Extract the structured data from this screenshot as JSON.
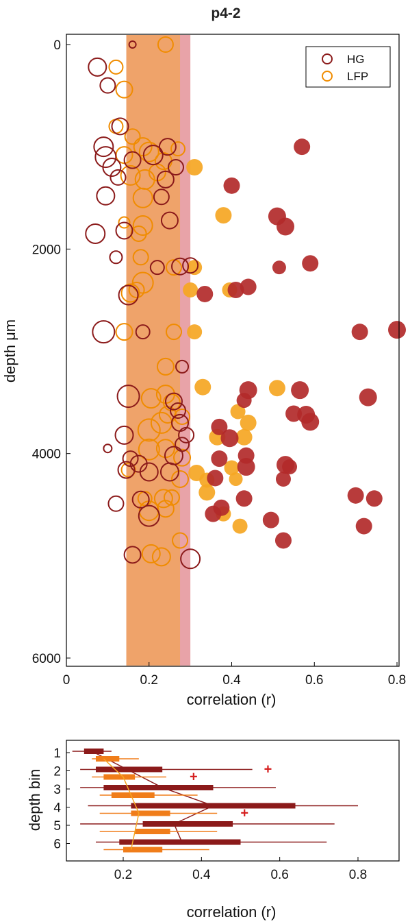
{
  "chart_data": [
    {
      "type": "scatter",
      "title": "p4-2",
      "xlabel": "correlation (r)",
      "ylabel": "depth μm",
      "xlim": [
        0,
        0.8
      ],
      "ylim": [
        6000,
        0
      ],
      "xticks": [
        "0",
        "0.2",
        "0.4",
        "0.6",
        "0.8"
      ],
      "yticks": [
        "0",
        "2000",
        "4000",
        "6000"
      ],
      "legend": {
        "placement": "top-right",
        "entries": [
          "HG",
          "LFP"
        ]
      },
      "colors": {
        "HG": "#8b1a1a",
        "LFP": "#f08c00",
        "HG_filled": "#b22a2a",
        "LFP_filled": "#f5a623",
        "band_HG": "#e5999f",
        "band_LFP": "#f0a35f",
        "band_overlap": "#e8896a"
      },
      "significance_bands": {
        "HG": [
          0.145,
          0.3
        ],
        "LFP": [
          0.145,
          0.275
        ],
        "note_symbol": "open = below threshold, filled = above"
      },
      "series": [
        {
          "name": "HG",
          "open_points": [
            {
              "x": 0.16,
              "y": 0,
              "r": 5
            },
            {
              "x": 0.075,
              "y": 220,
              "r": 13
            },
            {
              "x": 0.1,
              "y": 400,
              "r": 11
            },
            {
              "x": 0.13,
              "y": 800,
              "r": 12
            },
            {
              "x": 0.09,
              "y": 1000,
              "r": 14
            },
            {
              "x": 0.095,
              "y": 1100,
              "r": 15
            },
            {
              "x": 0.11,
              "y": 1200,
              "r": 13
            },
            {
              "x": 0.16,
              "y": 1130,
              "r": 12
            },
            {
              "x": 0.21,
              "y": 1080,
              "r": 14
            },
            {
              "x": 0.245,
              "y": 1000,
              "r": 12
            },
            {
              "x": 0.265,
              "y": 1200,
              "r": 11
            },
            {
              "x": 0.24,
              "y": 1320,
              "r": 12
            },
            {
              "x": 0.125,
              "y": 1300,
              "r": 11
            },
            {
              "x": 0.095,
              "y": 1480,
              "r": 13
            },
            {
              "x": 0.23,
              "y": 1490,
              "r": 11
            },
            {
              "x": 0.25,
              "y": 1720,
              "r": 12
            },
            {
              "x": 0.14,
              "y": 1820,
              "r": 12
            },
            {
              "x": 0.07,
              "y": 1850,
              "r": 14
            },
            {
              "x": 0.12,
              "y": 2080,
              "r": 9
            },
            {
              "x": 0.22,
              "y": 2180,
              "r": 10
            },
            {
              "x": 0.275,
              "y": 2170,
              "r": 12
            },
            {
              "x": 0.3,
              "y": 2160,
              "r": 11
            },
            {
              "x": 0.15,
              "y": 2450,
              "r": 14
            },
            {
              "x": 0.09,
              "y": 2810,
              "r": 16
            },
            {
              "x": 0.185,
              "y": 2810,
              "r": 10
            },
            {
              "x": 0.28,
              "y": 3150,
              "r": 9
            },
            {
              "x": 0.15,
              "y": 3440,
              "r": 16
            },
            {
              "x": 0.26,
              "y": 3490,
              "r": 12
            },
            {
              "x": 0.27,
              "y": 3580,
              "r": 11
            },
            {
              "x": 0.275,
              "y": 3700,
              "r": 12
            },
            {
              "x": 0.29,
              "y": 3820,
              "r": 11
            },
            {
              "x": 0.14,
              "y": 3820,
              "r": 13
            },
            {
              "x": 0.28,
              "y": 3910,
              "r": 10
            },
            {
              "x": 0.1,
              "y": 3950,
              "r": 6
            },
            {
              "x": 0.155,
              "y": 4050,
              "r": 11
            },
            {
              "x": 0.26,
              "y": 4020,
              "r": 13
            },
            {
              "x": 0.175,
              "y": 4100,
              "r": 12
            },
            {
              "x": 0.145,
              "y": 4160,
              "r": 12
            },
            {
              "x": 0.2,
              "y": 4180,
              "r": 13
            },
            {
              "x": 0.25,
              "y": 4180,
              "r": 13
            },
            {
              "x": 0.18,
              "y": 4450,
              "r": 12
            },
            {
              "x": 0.12,
              "y": 4490,
              "r": 11
            },
            {
              "x": 0.2,
              "y": 4610,
              "r": 15
            },
            {
              "x": 0.16,
              "y": 4990,
              "r": 12
            },
            {
              "x": 0.3,
              "y": 5030,
              "r": 14
            }
          ],
          "filled_points": [
            {
              "x": 0.57,
              "y": 1000,
              "r": 12
            },
            {
              "x": 0.4,
              "y": 1380,
              "r": 12
            },
            {
              "x": 0.51,
              "y": 1680,
              "r": 13
            },
            {
              "x": 0.53,
              "y": 1780,
              "r": 13
            },
            {
              "x": 0.59,
              "y": 2140,
              "r": 12
            },
            {
              "x": 0.515,
              "y": 2180,
              "r": 10
            },
            {
              "x": 0.335,
              "y": 2440,
              "r": 12
            },
            {
              "x": 0.41,
              "y": 2400,
              "r": 12
            },
            {
              "x": 0.44,
              "y": 2370,
              "r": 12
            },
            {
              "x": 0.8,
              "y": 2790,
              "r": 13
            },
            {
              "x": 0.71,
              "y": 2810,
              "r": 12
            },
            {
              "x": 0.44,
              "y": 3380,
              "r": 13
            },
            {
              "x": 0.565,
              "y": 3380,
              "r": 13
            },
            {
              "x": 0.43,
              "y": 3480,
              "r": 11
            },
            {
              "x": 0.73,
              "y": 3450,
              "r": 13
            },
            {
              "x": 0.55,
              "y": 3610,
              "r": 12
            },
            {
              "x": 0.58,
              "y": 3620,
              "r": 13
            },
            {
              "x": 0.59,
              "y": 3690,
              "r": 13
            },
            {
              "x": 0.37,
              "y": 3740,
              "r": 12
            },
            {
              "x": 0.395,
              "y": 3850,
              "r": 13
            },
            {
              "x": 0.37,
              "y": 4050,
              "r": 12
            },
            {
              "x": 0.435,
              "y": 4020,
              "r": 12
            },
            {
              "x": 0.54,
              "y": 4130,
              "r": 11
            },
            {
              "x": 0.435,
              "y": 4130,
              "r": 13
            },
            {
              "x": 0.53,
              "y": 4110,
              "r": 13
            },
            {
              "x": 0.36,
              "y": 4240,
              "r": 12
            },
            {
              "x": 0.525,
              "y": 4250,
              "r": 11
            },
            {
              "x": 0.43,
              "y": 4440,
              "r": 12
            },
            {
              "x": 0.7,
              "y": 4410,
              "r": 12
            },
            {
              "x": 0.745,
              "y": 4440,
              "r": 12
            },
            {
              "x": 0.375,
              "y": 4530,
              "r": 12
            },
            {
              "x": 0.355,
              "y": 4590,
              "r": 12
            },
            {
              "x": 0.495,
              "y": 4650,
              "r": 12
            },
            {
              "x": 0.72,
              "y": 4710,
              "r": 12
            },
            {
              "x": 0.525,
              "y": 4850,
              "r": 12
            }
          ]
        },
        {
          "name": "LFP",
          "open_points": [
            {
              "x": 0.24,
              "y": 0,
              "r": 11
            },
            {
              "x": 0.12,
              "y": 220,
              "r": 10
            },
            {
              "x": 0.14,
              "y": 440,
              "r": 12
            },
            {
              "x": 0.12,
              "y": 800,
              "r": 10
            },
            {
              "x": 0.16,
              "y": 900,
              "r": 11
            },
            {
              "x": 0.185,
              "y": 1000,
              "r": 13
            },
            {
              "x": 0.2,
              "y": 1050,
              "r": 14
            },
            {
              "x": 0.14,
              "y": 1080,
              "r": 12
            },
            {
              "x": 0.27,
              "y": 1020,
              "r": 10
            },
            {
              "x": 0.235,
              "y": 1140,
              "r": 12
            },
            {
              "x": 0.155,
              "y": 1280,
              "r": 14
            },
            {
              "x": 0.19,
              "y": 1320,
              "r": 14
            },
            {
              "x": 0.22,
              "y": 1250,
              "r": 12
            },
            {
              "x": 0.185,
              "y": 1500,
              "r": 14
            },
            {
              "x": 0.14,
              "y": 1740,
              "r": 8
            },
            {
              "x": 0.185,
              "y": 1770,
              "r": 14
            },
            {
              "x": 0.175,
              "y": 1850,
              "r": 11
            },
            {
              "x": 0.18,
              "y": 2080,
              "r": 11
            },
            {
              "x": 0.26,
              "y": 2180,
              "r": 11
            },
            {
              "x": 0.155,
              "y": 2430,
              "r": 13
            },
            {
              "x": 0.17,
              "y": 2400,
              "r": 11
            },
            {
              "x": 0.185,
              "y": 2330,
              "r": 15
            },
            {
              "x": 0.14,
              "y": 2810,
              "r": 12
            },
            {
              "x": 0.26,
              "y": 2810,
              "r": 11
            },
            {
              "x": 0.24,
              "y": 3150,
              "r": 12
            },
            {
              "x": 0.205,
              "y": 3460,
              "r": 14
            },
            {
              "x": 0.24,
              "y": 3420,
              "r": 13
            },
            {
              "x": 0.255,
              "y": 3500,
              "r": 12
            },
            {
              "x": 0.245,
              "y": 3620,
              "r": 12
            },
            {
              "x": 0.23,
              "y": 3700,
              "r": 15
            },
            {
              "x": 0.2,
              "y": 3770,
              "r": 16
            },
            {
              "x": 0.28,
              "y": 3640,
              "r": 11
            },
            {
              "x": 0.2,
              "y": 3960,
              "r": 15
            },
            {
              "x": 0.24,
              "y": 3950,
              "r": 13
            },
            {
              "x": 0.28,
              "y": 4040,
              "r": 12
            },
            {
              "x": 0.15,
              "y": 4160,
              "r": 10
            },
            {
              "x": 0.275,
              "y": 4250,
              "r": 12
            },
            {
              "x": 0.235,
              "y": 4440,
              "r": 13
            },
            {
              "x": 0.19,
              "y": 4440,
              "r": 10
            },
            {
              "x": 0.255,
              "y": 4430,
              "r": 11
            },
            {
              "x": 0.24,
              "y": 4540,
              "r": 12
            },
            {
              "x": 0.2,
              "y": 4560,
              "r": 14
            },
            {
              "x": 0.205,
              "y": 4980,
              "r": 13
            },
            {
              "x": 0.23,
              "y": 5010,
              "r": 13
            },
            {
              "x": 0.275,
              "y": 4850,
              "r": 11
            }
          ],
          "filled_points": [
            {
              "x": 0.31,
              "y": 1200,
              "r": 12
            },
            {
              "x": 0.38,
              "y": 1670,
              "r": 12
            },
            {
              "x": 0.31,
              "y": 2180,
              "r": 11
            },
            {
              "x": 0.3,
              "y": 2400,
              "r": 11
            },
            {
              "x": 0.395,
              "y": 2400,
              "r": 11
            },
            {
              "x": 0.31,
              "y": 2810,
              "r": 11
            },
            {
              "x": 0.33,
              "y": 3350,
              "r": 12
            },
            {
              "x": 0.51,
              "y": 3360,
              "r": 12
            },
            {
              "x": 0.415,
              "y": 3590,
              "r": 11
            },
            {
              "x": 0.44,
              "y": 3700,
              "r": 12
            },
            {
              "x": 0.365,
              "y": 3840,
              "r": 12
            },
            {
              "x": 0.43,
              "y": 3840,
              "r": 12
            },
            {
              "x": 0.315,
              "y": 4190,
              "r": 12
            },
            {
              "x": 0.34,
              "y": 4260,
              "r": 11
            },
            {
              "x": 0.41,
              "y": 4250,
              "r": 10
            },
            {
              "x": 0.4,
              "y": 4140,
              "r": 11
            },
            {
              "x": 0.34,
              "y": 4380,
              "r": 12
            },
            {
              "x": 0.38,
              "y": 4590,
              "r": 11
            },
            {
              "x": 0.42,
              "y": 4710,
              "r": 11
            }
          ]
        }
      ]
    },
    {
      "type": "boxplot",
      "title": "",
      "xlabel": "correlation (r)",
      "ylabel": "depth bin",
      "xlim": [
        0.08,
        0.88
      ],
      "xticks": [
        "0.2",
        "0.4",
        "0.6",
        "0.8"
      ],
      "categories": [
        "1",
        "2",
        "3",
        "4",
        "5",
        "6"
      ],
      "colors": {
        "HG": "#8b1a1a",
        "LFP": "#f07d1a",
        "median_HG": "#8b1a1a",
        "median_LFP": "#f5a623",
        "outlier": "#d62020"
      },
      "series": [
        {
          "name": "HG",
          "boxes": [
            {
              "bin": "1",
              "whisker": [
                0.07,
                0.17
              ],
              "box": [
                0.1,
                0.15
              ],
              "median": 0.12
            },
            {
              "bin": "2",
              "whisker": [
                0.09,
                0.53
              ],
              "box": [
                0.13,
                0.3
              ],
              "median": 0.21,
              "outliers": [
                0.57
              ]
            },
            {
              "bin": "3",
              "whisker": [
                0.09,
                0.59
              ],
              "box": [
                0.15,
                0.43
              ],
              "median": 0.3
            },
            {
              "bin": "4",
              "whisker": [
                0.11,
                0.8
              ],
              "box": [
                0.22,
                0.64
              ],
              "median": 0.43
            },
            {
              "bin": "5",
              "whisker": [
                0.09,
                0.74
              ],
              "box": [
                0.25,
                0.48
              ],
              "median": 0.33
            },
            {
              "bin": "6",
              "whisker": [
                0.13,
                0.72
              ],
              "box": [
                0.19,
                0.5
              ],
              "median": 0.35
            }
          ]
        },
        {
          "name": "LFP",
          "boxes": [
            {
              "bin": "1",
              "whisker": [
                0.12,
                0.24
              ],
              "box": [
                0.13,
                0.19
              ],
              "median": 0.15
            },
            {
              "bin": "2",
              "whisker": [
                0.12,
                0.31
              ],
              "box": [
                0.15,
                0.23
              ],
              "median": 0.2,
              "outliers": [
                0.38
              ]
            },
            {
              "bin": "3",
              "whisker": [
                0.14,
                0.39
              ],
              "box": [
                0.17,
                0.28
              ],
              "median": 0.22
            },
            {
              "bin": "4",
              "whisker": [
                0.14,
                0.44
              ],
              "box": [
                0.22,
                0.32
              ],
              "median": 0.24,
              "outliers": [
                0.51
              ]
            },
            {
              "bin": "5",
              "whisker": [
                0.14,
                0.44
              ],
              "box": [
                0.23,
                0.32
              ],
              "median": 0.23
            },
            {
              "bin": "6",
              "whisker": [
                0.15,
                0.42
              ],
              "box": [
                0.2,
                0.3
              ],
              "median": 0.22
            }
          ]
        }
      ]
    }
  ]
}
